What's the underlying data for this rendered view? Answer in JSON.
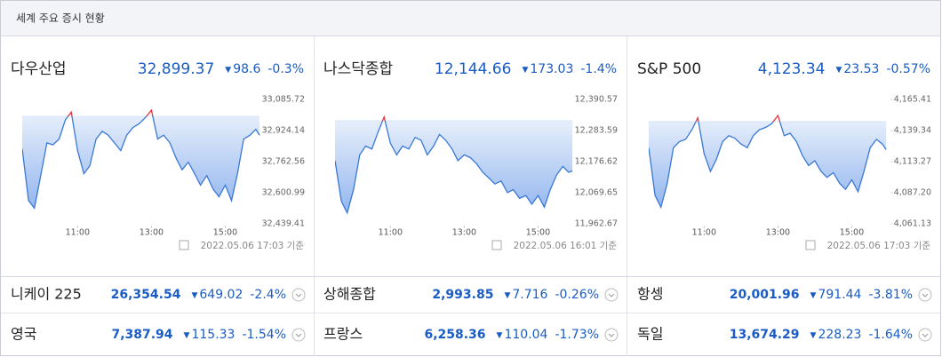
{
  "header": {
    "title": "세계 주요 증시 현황"
  },
  "chart_data": [
    {
      "type": "line",
      "title": "다우산업",
      "price": "32,899.37",
      "change": "98.6",
      "change_pct": "-0.3%",
      "prev_close": 32997.97,
      "timestamp": "2022.05.06 17:03 기준",
      "above_color": "#e8323c",
      "x": [
        9.5,
        9.67,
        9.83,
        10,
        10.17,
        10.33,
        10.5,
        10.67,
        10.83,
        11,
        11.17,
        11.33,
        11.5,
        11.67,
        11.83,
        12,
        12.17,
        12.33,
        12.5,
        12.67,
        12.83,
        13,
        13.17,
        13.33,
        13.5,
        13.67,
        13.83,
        14,
        14.17,
        14.33,
        14.5,
        14.67,
        14.83,
        15,
        15.17,
        15.33,
        15.5,
        15.67,
        15.83,
        15.93
      ],
      "series": [
        {
          "color": "#3a78d6",
          "values": [
            32830,
            32560,
            32520,
            32690,
            32860,
            32850,
            32880,
            32980,
            33020,
            32820,
            32700,
            32740,
            32880,
            32920,
            32900,
            32860,
            32820,
            32900,
            32940,
            32960,
            32990,
            33030,
            32880,
            32900,
            32860,
            32780,
            32720,
            32760,
            32700,
            32640,
            32690,
            32620,
            32580,
            32640,
            32560,
            32700,
            32880,
            32900,
            32930,
            32899.37
          ]
        }
      ],
      "xlim": [
        9.5,
        16
      ],
      "xticks": [
        {
          "value": 11,
          "label": "11:00"
        },
        {
          "value": 13,
          "label": "13:00"
        },
        {
          "value": 15,
          "label": "15:00"
        }
      ],
      "ylim": [
        32439.41,
        33085.72
      ],
      "yticks": [
        {
          "value": 33085.72,
          "label": "33,085.72"
        },
        {
          "value": 32924.14,
          "label": "32,924.14"
        },
        {
          "value": 32762.56,
          "label": "32,762.56"
        },
        {
          "value": 32600.99,
          "label": "32,600.99"
        },
        {
          "value": 32439.41,
          "label": "32,439.41"
        }
      ]
    },
    {
      "type": "line",
      "title": "나스닥종합",
      "price": "12,144.66",
      "change": "173.03",
      "change_pct": "-1.4%",
      "prev_close": 12317.69,
      "timestamp": "2022.05.06 16:01 기준",
      "above_color": "#e8323c",
      "x": [
        9.5,
        9.67,
        9.83,
        10,
        10.17,
        10.33,
        10.5,
        10.67,
        10.83,
        11,
        11.17,
        11.33,
        11.5,
        11.67,
        11.83,
        12,
        12.17,
        12.33,
        12.5,
        12.67,
        12.83,
        13,
        13.17,
        13.33,
        13.5,
        13.67,
        13.83,
        14,
        14.17,
        14.33,
        14.5,
        14.67,
        14.83,
        15,
        15.17,
        15.33,
        15.5,
        15.67,
        15.83,
        15.93
      ],
      "series": [
        {
          "color": "#3a78d6",
          "values": [
            12180,
            12040,
            12000,
            12080,
            12200,
            12230,
            12220,
            12280,
            12330,
            12240,
            12200,
            12230,
            12220,
            12260,
            12250,
            12200,
            12230,
            12270,
            12250,
            12220,
            12180,
            12200,
            12190,
            12170,
            12140,
            12120,
            12100,
            12110,
            12070,
            12080,
            12050,
            12060,
            12030,
            12060,
            12020,
            12080,
            12130,
            12160,
            12140,
            12144.66
          ]
        }
      ],
      "xlim": [
        9.5,
        16
      ],
      "xticks": [
        {
          "value": 11,
          "label": "11:00"
        },
        {
          "value": 13,
          "label": "13:00"
        },
        {
          "value": 15,
          "label": "15:00"
        }
      ],
      "ylim": [
        11962.67,
        12390.57
      ],
      "yticks": [
        {
          "value": 12390.57,
          "label": "12,390.57"
        },
        {
          "value": 12283.59,
          "label": "12,283.59"
        },
        {
          "value": 12176.62,
          "label": "12,176.62"
        },
        {
          "value": 12069.65,
          "label": "12,069.65"
        },
        {
          "value": 11962.67,
          "label": "11,962.67"
        }
      ]
    },
    {
      "type": "line",
      "title": "S&P 500",
      "price": "4,123.34",
      "change": "23.53",
      "change_pct": "-0.57%",
      "prev_close": 4146.87,
      "timestamp": "2022.05.06 17:03 기준",
      "above_color": "#e8323c",
      "x": [
        9.5,
        9.67,
        9.83,
        10,
        10.17,
        10.33,
        10.5,
        10.67,
        10.83,
        11,
        11.17,
        11.33,
        11.5,
        11.67,
        11.83,
        12,
        12.17,
        12.33,
        12.5,
        12.67,
        12.83,
        13,
        13.17,
        13.33,
        13.5,
        13.67,
        13.83,
        14,
        14.17,
        14.33,
        14.5,
        14.67,
        14.83,
        15,
        15.17,
        15.33,
        15.5,
        15.67,
        15.83,
        15.93
      ],
      "series": [
        {
          "color": "#3a78d6",
          "values": [
            4125,
            4085,
            4075,
            4095,
            4125,
            4130,
            4132,
            4140,
            4150,
            4120,
            4105,
            4115,
            4130,
            4135,
            4133,
            4128,
            4125,
            4135,
            4140,
            4142,
            4145,
            4152,
            4135,
            4137,
            4130,
            4118,
            4110,
            4114,
            4105,
            4100,
            4104,
            4095,
            4090,
            4098,
            4088,
            4105,
            4125,
            4132,
            4128,
            4123.34
          ]
        }
      ],
      "xlim": [
        9.5,
        16
      ],
      "xticks": [
        {
          "value": 11,
          "label": "11:00"
        },
        {
          "value": 13,
          "label": "13:00"
        },
        {
          "value": 15,
          "label": "15:00"
        }
      ],
      "ylim": [
        4061.13,
        4165.41
      ],
      "yticks": [
        {
          "value": 4165.41,
          "label": "4,165.41"
        },
        {
          "value": 4139.34,
          "label": "4,139.34"
        },
        {
          "value": 4113.27,
          "label": "4,113.27"
        },
        {
          "value": 4087.2,
          "label": "4,087.20"
        },
        {
          "value": 4061.13,
          "label": "4,061.13"
        }
      ]
    }
  ],
  "markets": [
    {
      "name": "니케이 225",
      "price": "26,354.54",
      "change": "649.02",
      "change_pct": "-2.4%"
    },
    {
      "name": "상해종합",
      "price": "2,993.85",
      "change": "7.716",
      "change_pct": "-0.26%"
    },
    {
      "name": "항셍",
      "price": "20,001.96",
      "change": "791.44",
      "change_pct": "-3.81%"
    },
    {
      "name": "영국",
      "price": "7,387.94",
      "change": "115.33",
      "change_pct": "-1.54%"
    },
    {
      "name": "프랑스",
      "price": "6,258.36",
      "change": "110.04",
      "change_pct": "-1.73%"
    },
    {
      "name": "독일",
      "price": "13,674.29",
      "change": "228.23",
      "change_pct": "-1.64%"
    }
  ]
}
